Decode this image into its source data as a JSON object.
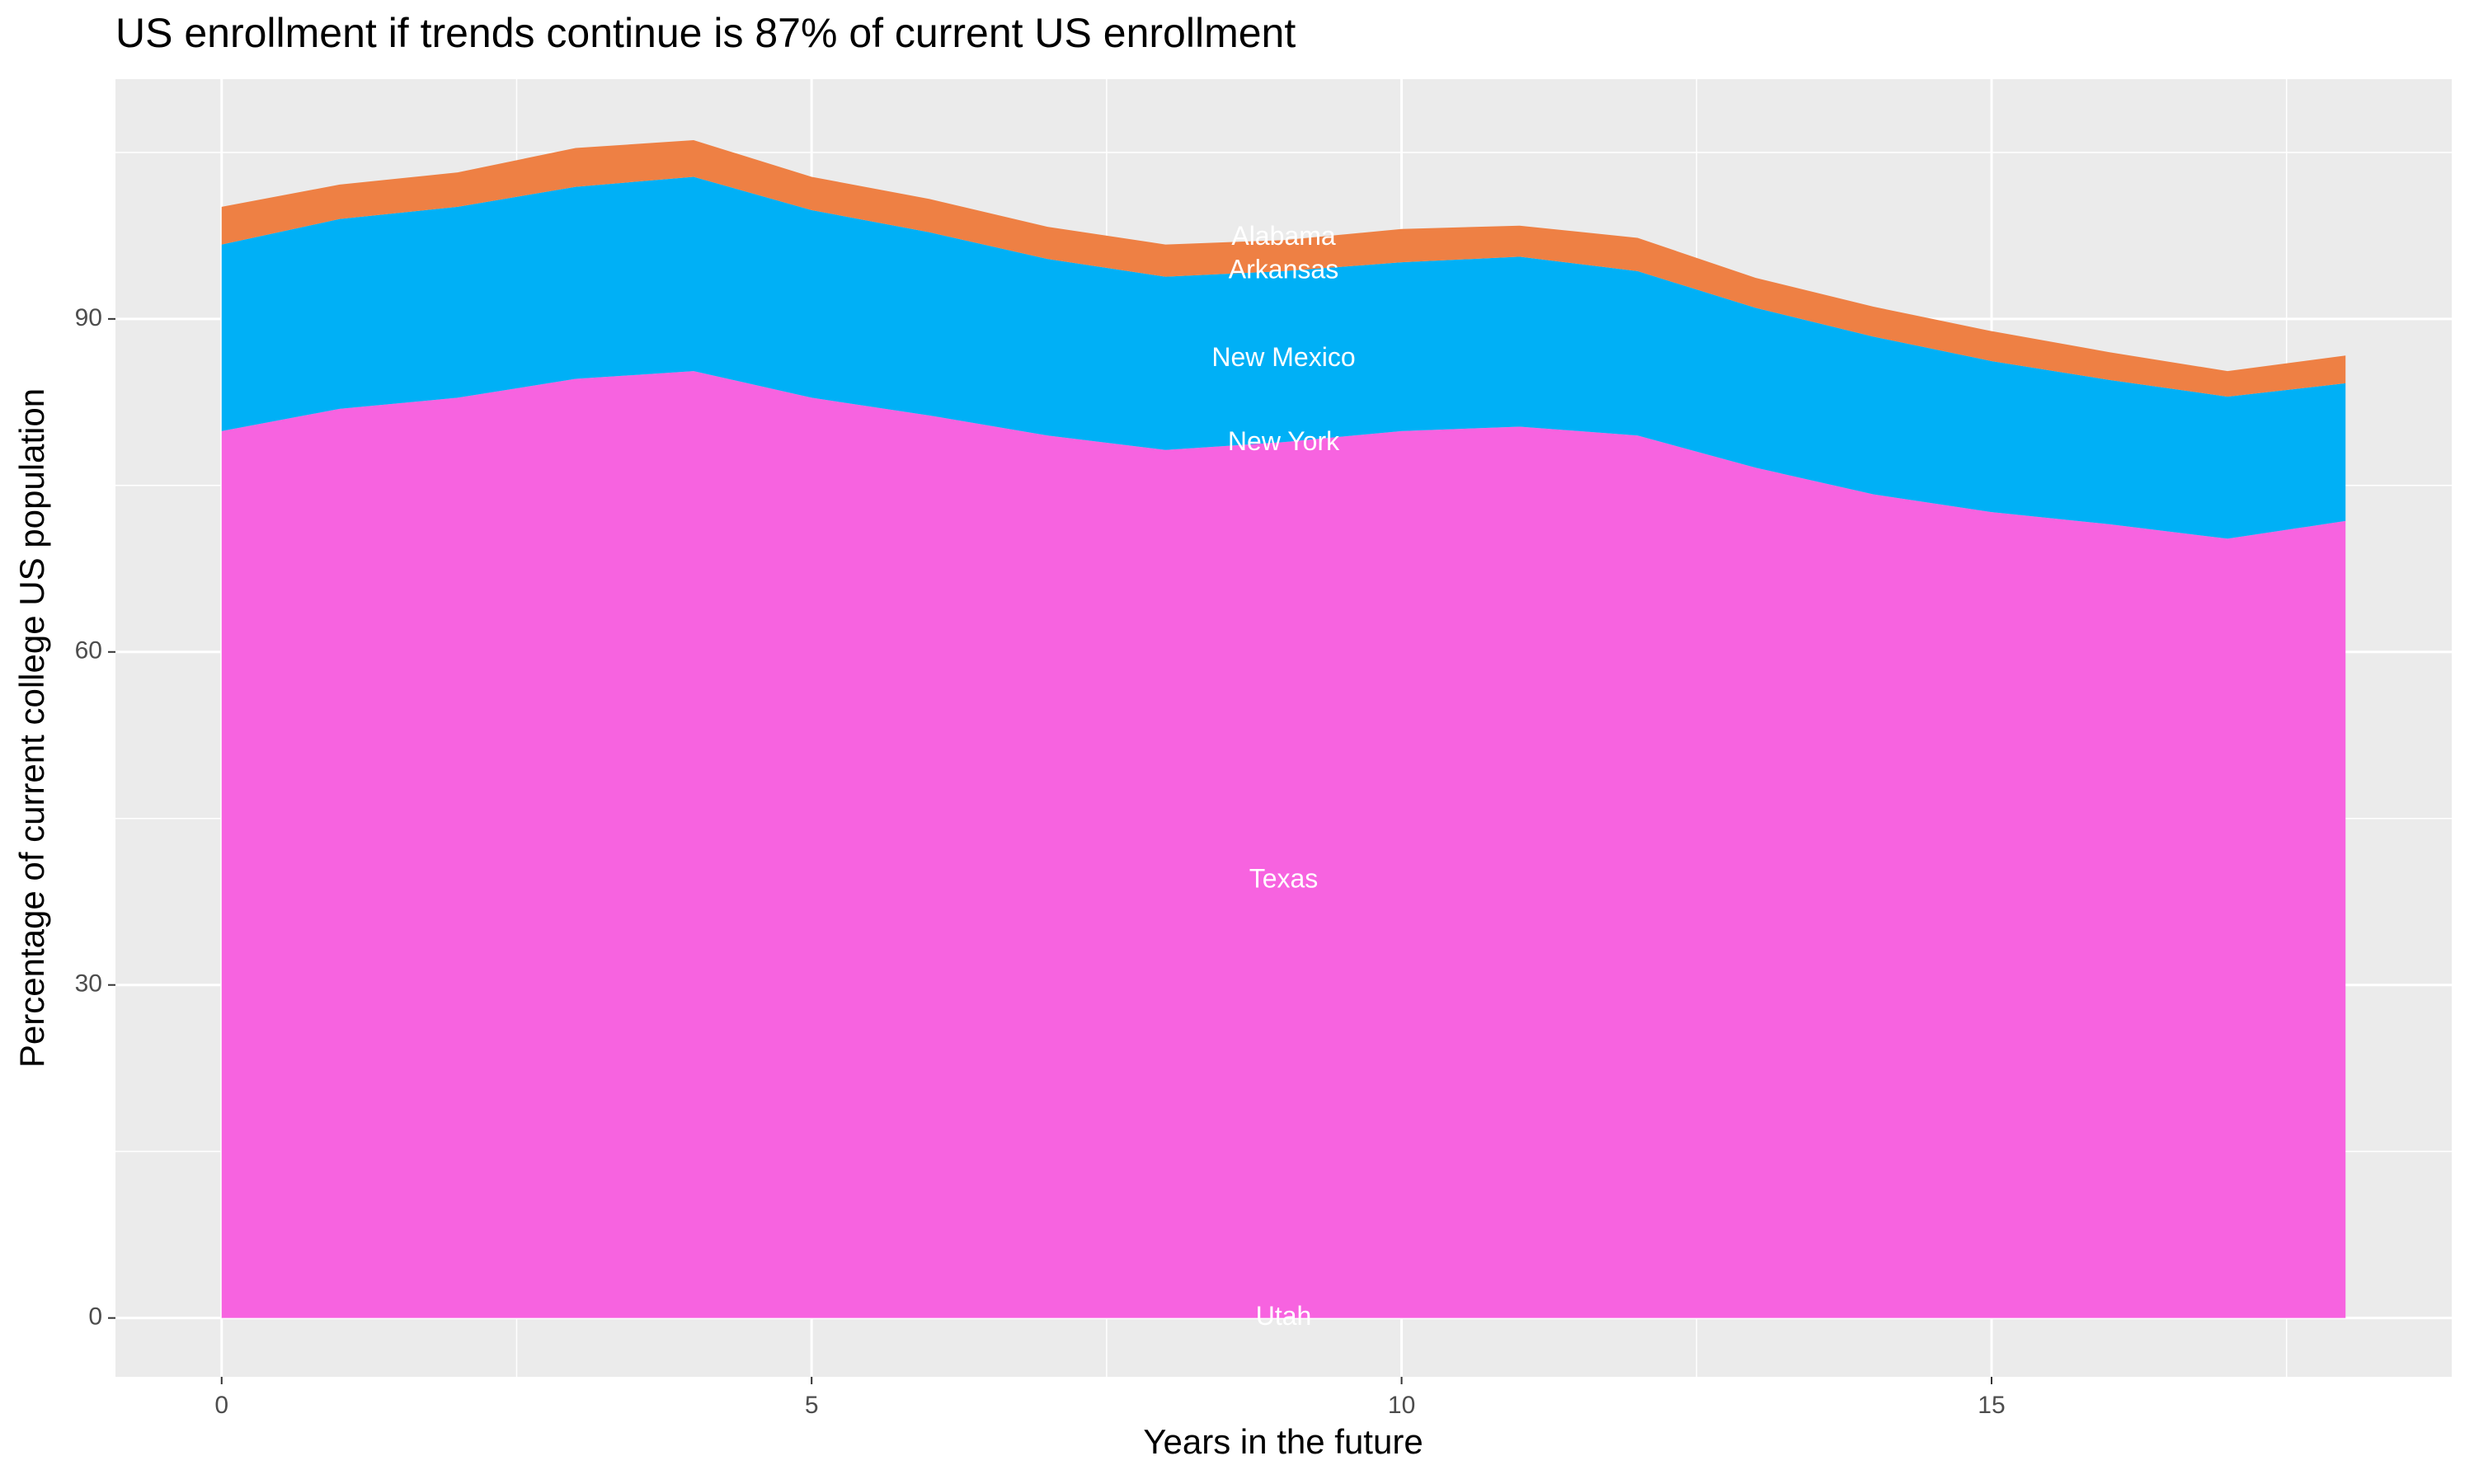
{
  "chart_data": {
    "type": "stacked_area",
    "title": "US enrollment if trends continue is 87% of current US enrollment",
    "x_label": "Years in the future",
    "y_label": "Percentage of current college US population",
    "x": [
      0,
      1,
      2,
      3,
      4,
      5,
      6,
      7,
      8,
      9,
      10,
      11,
      12,
      13,
      14,
      15,
      16,
      17,
      18
    ],
    "series": [
      {
        "color": "#f763e0",
        "values": [
          79.9,
          81.9,
          82.9,
          84.6,
          85.3,
          82.9,
          81.3,
          79.5,
          78.2,
          78.9,
          79.9,
          80.3,
          79.5,
          76.6,
          74.2,
          72.6,
          71.5,
          70.2,
          71.8
        ]
      },
      {
        "color": "#00b0f6",
        "values": [
          16.8,
          17.1,
          17.2,
          17.3,
          17.5,
          16.9,
          16.5,
          15.9,
          15.6,
          15.4,
          15.2,
          15.3,
          14.8,
          14.4,
          14.2,
          13.6,
          13.0,
          12.8,
          12.4
        ]
      },
      {
        "color": "#ee8044",
        "values": [
          3.4,
          3.1,
          3.1,
          3.5,
          3.3,
          3.0,
          3.0,
          2.9,
          2.9,
          2.8,
          3.0,
          2.8,
          3.0,
          2.7,
          2.7,
          2.7,
          2.5,
          2.3,
          2.5
        ]
      }
    ],
    "annotations": [
      {
        "text": "Alabama",
        "x": 9,
        "y": 97.3
      },
      {
        "text": "Arkansas",
        "x": 9,
        "y": 94.3
      },
      {
        "text": "New Mexico",
        "x": 9,
        "y": 86.4
      },
      {
        "text": "New York",
        "x": 9,
        "y": 78.8
      },
      {
        "text": "Texas",
        "x": 9,
        "y": 39.4
      },
      {
        "text": "Utah",
        "x": 9,
        "y": 0
      }
    ],
    "xlim": [
      -0.9,
      18.9
    ],
    "ylim": [
      -5.3,
      111.6
    ],
    "xticks": [
      0,
      5,
      10,
      15
    ],
    "yticks": [
      0,
      30,
      60,
      90
    ],
    "grid": true
  }
}
